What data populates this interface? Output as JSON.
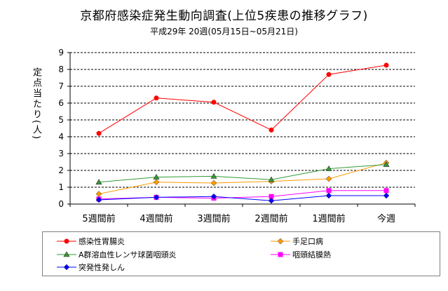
{
  "chart_data": {
    "type": "line",
    "title": "京都府感染症発生動向調査(上位5疾患の推移グラフ)",
    "subtitle": "平成29年 20週(05月15日~05月21日)",
    "ylabel": "定点当たり(人)",
    "xlabel": "",
    "categories": [
      "5週間前",
      "4週間前",
      "3週間前",
      "2週間前",
      "1週間前",
      "今週"
    ],
    "ylim": [
      0,
      9
    ],
    "yticks": [
      "0",
      "1",
      "2",
      "3",
      "4",
      "5",
      "6",
      "7",
      "8",
      "9"
    ],
    "grid": true,
    "legend_position": "bottom",
    "series": [
      {
        "name": "感染性胃腸炎",
        "color": "#ff0000",
        "marker": "circle",
        "values": [
          4.2,
          6.3,
          6.05,
          4.4,
          7.7,
          8.25
        ]
      },
      {
        "name": "手足口病",
        "color": "#ff9900",
        "marker": "diamond",
        "values": [
          0.6,
          1.3,
          1.25,
          1.35,
          1.5,
          2.45
        ]
      },
      {
        "name": "A群溶血性レンサ球菌咽頭炎",
        "color": "#339933",
        "marker": "triangle",
        "values": [
          1.3,
          1.6,
          1.65,
          1.45,
          2.1,
          2.35
        ]
      },
      {
        "name": "咽頭結膜熱",
        "color": "#ff00ff",
        "marker": "square",
        "values": [
          0.3,
          0.4,
          0.35,
          0.45,
          0.8,
          0.8
        ]
      },
      {
        "name": "突発性発しん",
        "color": "#0000ff",
        "marker": "diamond",
        "values": [
          0.25,
          0.4,
          0.45,
          0.2,
          0.5,
          0.5
        ]
      }
    ]
  }
}
